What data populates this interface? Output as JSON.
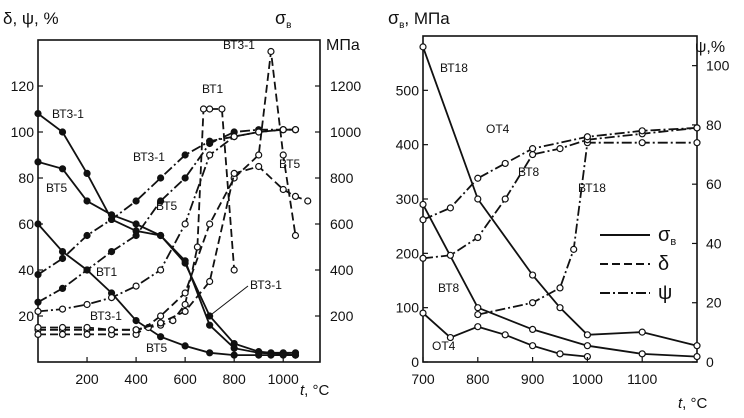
{
  "chart_data": [
    {
      "type": "line",
      "panel": "left",
      "axis_titles": {
        "left": "δ, ψ, %",
        "right_symbol": "σ",
        "right_sub": "в",
        "right_unit": "МПа",
        "x_italic": "t",
        "x_unit": ", °C"
      },
      "xlim": [
        0,
        1150
      ],
      "xticks": [
        200,
        400,
        600,
        800,
        1000
      ],
      "ylim_left": [
        0,
        140
      ],
      "yticks_left": [
        20,
        40,
        60,
        80,
        100,
        120
      ],
      "ylim_right": [
        0,
        1400
      ],
      "yticks_right": [
        200,
        400,
        600,
        800,
        1000,
        1200
      ],
      "series": [
        {
          "name": "σв ВТ3-1",
          "style": "solid",
          "marker": "filled",
          "axis": "right",
          "x": [
            0,
            100,
            200,
            300,
            400,
            500,
            600,
            700,
            800,
            900,
            950,
            1000,
            1050
          ],
          "y": [
            1080,
            1000,
            820,
            620,
            570,
            550,
            430,
            200,
            80,
            45,
            40,
            40,
            40
          ]
        },
        {
          "name": "σв ВТ5",
          "style": "solid",
          "marker": "filled",
          "axis": "right",
          "x": [
            0,
            100,
            200,
            300,
            400,
            500,
            600,
            700,
            800,
            900,
            1000,
            1050
          ],
          "y": [
            870,
            840,
            700,
            640,
            600,
            550,
            440,
            160,
            60,
            40,
            35,
            30
          ]
        },
        {
          "name": "σв ВТ1",
          "style": "solid",
          "marker": "filled",
          "axis": "right",
          "x": [
            0,
            100,
            200,
            300,
            400,
            500,
            600,
            700,
            800,
            900,
            950,
            1000,
            1050
          ],
          "y": [
            600,
            480,
            400,
            300,
            180,
            110,
            70,
            40,
            30,
            30,
            30,
            30,
            30
          ]
        },
        {
          "name": "δ ВТ1",
          "style": "dashed",
          "marker": "open",
          "axis": "left",
          "x": [
            0,
            100,
            200,
            300,
            400,
            450,
            500,
            550,
            600,
            650,
            675,
            700,
            750,
            800
          ],
          "y": [
            14,
            14,
            14,
            14,
            14,
            15,
            16,
            18,
            25,
            50,
            110,
            110,
            110,
            40
          ]
        },
        {
          "name": "δ ВТ3-1",
          "style": "dashed",
          "marker": "open",
          "axis": "left",
          "x": [
            0,
            100,
            200,
            300,
            400,
            500,
            600,
            700,
            800,
            900,
            950,
            1000,
            1050
          ],
          "y": [
            12,
            12,
            12,
            12,
            12,
            20,
            30,
            60,
            80,
            90,
            135,
            90,
            55
          ]
        },
        {
          "name": "δ ВТ5",
          "style": "dashed",
          "marker": "open",
          "axis": "left",
          "x": [
            0,
            100,
            200,
            300,
            400,
            500,
            600,
            700,
            800,
            900,
            1000,
            1050,
            1100
          ],
          "y": [
            15,
            15,
            15,
            14,
            14,
            17,
            22,
            35,
            82,
            85,
            75,
            72,
            70
          ]
        },
        {
          "name": "ψ ВТ3-1",
          "style": "dashdot",
          "marker": "filled",
          "axis": "left",
          "x": [
            0,
            100,
            200,
            300,
            400,
            500,
            600,
            700,
            800,
            900,
            1000,
            1050
          ],
          "y": [
            26,
            32,
            40,
            48,
            55,
            70,
            80,
            95,
            100,
            101,
            101,
            101
          ]
        },
        {
          "name": "ψ ВТ5",
          "style": "dashdot",
          "marker": "filled",
          "axis": "left",
          "x": [
            0,
            100,
            200,
            300,
            400,
            500,
            600,
            700,
            800,
            900,
            1000,
            1050
          ],
          "y": [
            38,
            45,
            55,
            62,
            70,
            80,
            90,
            96,
            98,
            100,
            101,
            101
          ]
        },
        {
          "name": "ψ ВТ1",
          "style": "dashdot",
          "marker": "open",
          "axis": "left",
          "x": [
            0,
            100,
            200,
            300,
            400,
            500,
            600,
            700,
            800,
            900,
            1000,
            1050
          ],
          "y": [
            22,
            23,
            25,
            28,
            33,
            40,
            60,
            90,
            98,
            100,
            101,
            101
          ]
        }
      ],
      "annotations": [
        "ВТ3-1",
        "ВТ5",
        "ВТ1",
        "ВТ1",
        "ВТ3-1",
        "ВТ3-1",
        "ВТ5",
        "ВТ5",
        "ВТ3-1",
        "ВТ3-1",
        "ВТ5"
      ]
    },
    {
      "type": "line",
      "panel": "right",
      "axis_titles": {
        "left_symbol": "σ",
        "left_sub": "в",
        "left_unit": ", МПа",
        "right": "ψ,%",
        "x_italic": "t",
        "x_unit": ", °C"
      },
      "xlim": [
        700,
        1200
      ],
      "xticks": [
        700,
        800,
        900,
        1000,
        1100
      ],
      "ylim_left": [
        0,
        600
      ],
      "yticks_left": [
        0,
        100,
        200,
        300,
        400,
        500
      ],
      "ylim_right": [
        0,
        110
      ],
      "yticks_right": [
        0,
        20,
        40,
        60,
        80,
        100
      ],
      "series": [
        {
          "name": "σв ВТ18",
          "style": "solid",
          "marker": "open",
          "axis": "left",
          "x": [
            700,
            800,
            900,
            950,
            1000,
            1100,
            1200
          ],
          "y": [
            580,
            300,
            160,
            100,
            50,
            55,
            30
          ]
        },
        {
          "name": "σв ВТ8",
          "style": "solid",
          "marker": "open",
          "axis": "left",
          "x": [
            700,
            800,
            900,
            1000,
            1100,
            1200
          ],
          "y": [
            290,
            100,
            60,
            30,
            15,
            10
          ]
        },
        {
          "name": "σв ОТ4",
          "style": "solid",
          "marker": "open",
          "axis": "left",
          "x": [
            700,
            750,
            800,
            850,
            900,
            950,
            1000
          ],
          "y": [
            90,
            45,
            65,
            50,
            30,
            15,
            10
          ]
        },
        {
          "name": "ψ ВТ18",
          "style": "dashdot",
          "marker": "open",
          "axis": "right",
          "x": [
            800,
            900,
            950,
            975,
            1000,
            1100,
            1200
          ],
          "y": [
            16,
            20,
            25,
            38,
            74,
            74,
            74
          ]
        },
        {
          "name": "ψ ВТ8",
          "style": "dashdot",
          "marker": "open",
          "axis": "right",
          "x": [
            700,
            750,
            800,
            850,
            900,
            950,
            1000,
            1100,
            1200
          ],
          "y": [
            35,
            36,
            42,
            55,
            70,
            72,
            75,
            77,
            79
          ]
        },
        {
          "name": "ψ ОТ4",
          "style": "dashdot",
          "marker": "open",
          "axis": "right",
          "x": [
            700,
            750,
            800,
            850,
            900,
            1000,
            1100,
            1200
          ],
          "y": [
            48,
            52,
            62,
            67,
            72,
            76,
            78,
            79
          ]
        }
      ],
      "legend": {
        "position": "right",
        "entries": [
          {
            "style": "solid",
            "symbol": "σ",
            "sub": "в"
          },
          {
            "style": "dashed",
            "symbol": "δ",
            "sub": ""
          },
          {
            "style": "dashdot",
            "symbol": "ψ",
            "sub": ""
          }
        ]
      },
      "annotations": [
        "ВТ18",
        "ОТ4",
        "ВТ8",
        "ВТ18",
        "ВТ8",
        "ОТ4"
      ]
    }
  ]
}
